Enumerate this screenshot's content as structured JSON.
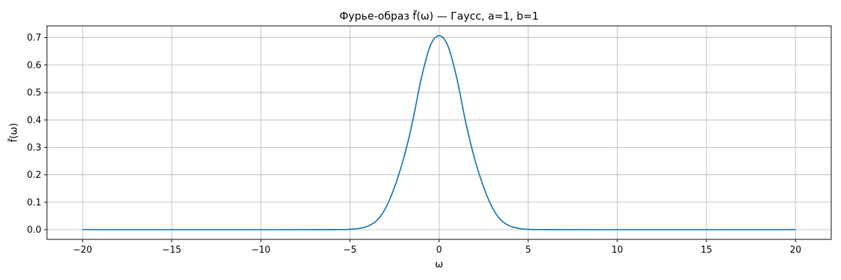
{
  "chart_data": {
    "type": "line",
    "title": "Фурье-образ f̃(ω) — Гаусс, a=1, b=1",
    "xlabel": "ω",
    "ylabel": "f̃(ω)",
    "xlim": [
      -22,
      22
    ],
    "ylim": [
      -0.0354,
      0.7425
    ],
    "xticks": [
      -20,
      -15,
      -10,
      -5,
      0,
      5,
      10,
      15,
      20
    ],
    "xtick_labels": [
      "−20",
      "−15",
      "−10",
      "−5",
      "0",
      "5",
      "10",
      "15",
      "20"
    ],
    "yticks": [
      0.0,
      0.1,
      0.2,
      0.3,
      0.4,
      0.5,
      0.6,
      0.7
    ],
    "ytick_labels": [
      "0.0",
      "0.1",
      "0.2",
      "0.3",
      "0.4",
      "0.5",
      "0.6",
      "0.7"
    ],
    "grid": true,
    "series": [
      {
        "color": "#1f77b4",
        "x": [
          -20,
          -15,
          -10,
          -6,
          -5,
          -4.5,
          -4,
          -3.5,
          -3,
          -2.5,
          -2,
          -1.5,
          -1,
          -0.5,
          0,
          0.5,
          1,
          1.5,
          2,
          2.5,
          3,
          3.5,
          4,
          4.5,
          5,
          6,
          10,
          15,
          20
        ],
        "y": [
          0.0,
          0.0,
          0.0,
          0.0001,
          0.0014,
          0.0045,
          0.0129,
          0.0331,
          0.0786,
          0.155,
          0.2571,
          0.3896,
          0.5506,
          0.6688,
          0.7071,
          0.6688,
          0.5506,
          0.3896,
          0.2571,
          0.155,
          0.0786,
          0.0331,
          0.0129,
          0.0045,
          0.0014,
          0.0001,
          0.0,
          0.0,
          0.0
        ]
      }
    ]
  }
}
